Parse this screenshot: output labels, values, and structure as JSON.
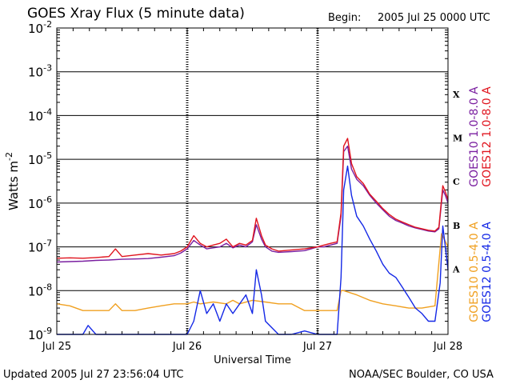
{
  "header": {
    "title": "GOES Xray Flux (5 minute data)",
    "begin_label": "Begin:",
    "begin_value": "2005 Jul 25 0000 UTC"
  },
  "footer": {
    "updated": "Updated 2005 Jul 27 23:56:04 UTC",
    "credit": "NOAA/SEC Boulder, CO USA"
  },
  "colors": {
    "goes10_long": "#7a1fa0",
    "goes12_long": "#e0141e",
    "goes10_short": "#f0a020",
    "goes12_short": "#1428e6",
    "grid": "#000000"
  },
  "chart_data": {
    "type": "line",
    "title": "GOES Xray Flux (5 minute data)",
    "xlabel": "Universal Time",
    "ylabel": "Watts m",
    "ylabel_sup": "-2",
    "y_scale": "log",
    "ylim": [
      1e-09,
      0.01
    ],
    "xlim_days": [
      0,
      3
    ],
    "grid": true,
    "x_ticks": [
      {
        "label": "Jul 25",
        "day": 0
      },
      {
        "label": "Jul 26",
        "day": 1
      },
      {
        "label": "Jul 27",
        "day": 2
      },
      {
        "label": "Jul 28",
        "day": 3
      }
    ],
    "y_ticks": [
      {
        "base": "10",
        "exp": "-9",
        "value": 1e-09
      },
      {
        "base": "10",
        "exp": "-8",
        "value": 1e-08
      },
      {
        "base": "10",
        "exp": "-7",
        "value": 1e-07
      },
      {
        "base": "10",
        "exp": "-6",
        "value": 1e-06
      },
      {
        "base": "10",
        "exp": "-5",
        "value": 1e-05
      },
      {
        "base": "10",
        "exp": "-4",
        "value": 0.0001
      },
      {
        "base": "10",
        "exp": "-3",
        "value": 0.001
      },
      {
        "base": "10",
        "exp": "-2",
        "value": 0.01
      }
    ],
    "flare_classes": [
      {
        "label": "X",
        "value": 0.0001
      },
      {
        "label": "M",
        "value": 1e-05
      },
      {
        "label": "C",
        "value": 1e-06
      },
      {
        "label": "B",
        "value": 1e-07
      },
      {
        "label": "A",
        "value": 1e-08
      }
    ],
    "legend_right": [
      {
        "text": "GOES10 1.0-8.0 A",
        "color": "#7a1fa0"
      },
      {
        "text": "GOES12 1.0-8.0 A",
        "color": "#e0141e"
      },
      {
        "text": "GOES10 0.5-4.0 A",
        "color": "#f0a020"
      },
      {
        "text": "GOES12 0.5-4.0 A",
        "color": "#1428e6"
      }
    ],
    "series": [
      {
        "name": "GOES10 1.0-8.0 A",
        "color": "#7a1fa0",
        "points": [
          [
            0.0,
            4.5e-08
          ],
          [
            0.1,
            4.6e-08
          ],
          [
            0.2,
            4.7e-08
          ],
          [
            0.3,
            4.9e-08
          ],
          [
            0.4,
            5e-08
          ],
          [
            0.5,
            5.2e-08
          ],
          [
            0.6,
            5.3e-08
          ],
          [
            0.7,
            5.4e-08
          ],
          [
            0.8,
            5.8e-08
          ],
          [
            0.9,
            6.3e-08
          ],
          [
            0.95,
            7.2e-08
          ],
          [
            1.0,
            9e-08
          ],
          [
            1.05,
            1.4e-07
          ],
          [
            1.1,
            1.1e-07
          ],
          [
            1.15,
            9e-08
          ],
          [
            1.2,
            9.5e-08
          ],
          [
            1.25,
            1e-07
          ],
          [
            1.3,
            1.2e-07
          ],
          [
            1.35,
            9.5e-08
          ],
          [
            1.4,
            1.1e-07
          ],
          [
            1.45,
            1e-07
          ],
          [
            1.5,
            1.3e-07
          ],
          [
            1.53,
            3.2e-07
          ],
          [
            1.57,
            1.5e-07
          ],
          [
            1.6,
            1e-07
          ],
          [
            1.65,
            8e-08
          ],
          [
            1.7,
            7.5e-08
          ],
          [
            1.8,
            7.8e-08
          ],
          [
            1.9,
            8.2e-08
          ],
          [
            1.95,
            9e-08
          ],
          [
            2.0,
            1e-07
          ],
          [
            2.05,
            1e-07
          ],
          [
            2.1,
            1.1e-07
          ],
          [
            2.15,
            1.2e-07
          ],
          [
            2.18,
            5e-07
          ],
          [
            2.2,
            1.5e-05
          ],
          [
            2.23,
            2e-05
          ],
          [
            2.26,
            6e-06
          ],
          [
            2.3,
            3.5e-06
          ],
          [
            2.35,
            2.5e-06
          ],
          [
            2.4,
            1.5e-06
          ],
          [
            2.45,
            1e-06
          ],
          [
            2.5,
            7e-07
          ],
          [
            2.55,
            5e-07
          ],
          [
            2.6,
            4e-07
          ],
          [
            2.65,
            3.5e-07
          ],
          [
            2.7,
            3e-07
          ],
          [
            2.75,
            2.7e-07
          ],
          [
            2.8,
            2.5e-07
          ],
          [
            2.85,
            2.3e-07
          ],
          [
            2.9,
            2.2e-07
          ],
          [
            2.93,
            2.6e-07
          ],
          [
            2.96,
            2e-06
          ],
          [
            2.98,
            1.5e-06
          ],
          [
            3.0,
            1e-06
          ]
        ]
      },
      {
        "name": "GOES12 1.0-8.0 A",
        "color": "#e0141e",
        "points": [
          [
            0.0,
            5.5e-08
          ],
          [
            0.1,
            5.6e-08
          ],
          [
            0.2,
            5.5e-08
          ],
          [
            0.3,
            5.7e-08
          ],
          [
            0.4,
            6e-08
          ],
          [
            0.45,
            9e-08
          ],
          [
            0.5,
            6e-08
          ],
          [
            0.6,
            6.5e-08
          ],
          [
            0.7,
            7e-08
          ],
          [
            0.8,
            6.5e-08
          ],
          [
            0.9,
            7e-08
          ],
          [
            0.95,
            8e-08
          ],
          [
            1.0,
            1e-07
          ],
          [
            1.05,
            1.8e-07
          ],
          [
            1.1,
            1.2e-07
          ],
          [
            1.15,
            1e-07
          ],
          [
            1.2,
            1.1e-07
          ],
          [
            1.25,
            1.2e-07
          ],
          [
            1.3,
            1.5e-07
          ],
          [
            1.35,
            1e-07
          ],
          [
            1.4,
            1.2e-07
          ],
          [
            1.45,
            1.1e-07
          ],
          [
            1.5,
            1.4e-07
          ],
          [
            1.53,
            4.5e-07
          ],
          [
            1.57,
            1.8e-07
          ],
          [
            1.6,
            1.1e-07
          ],
          [
            1.65,
            9e-08
          ],
          [
            1.7,
            8e-08
          ],
          [
            1.8,
            8.5e-08
          ],
          [
            1.9,
            9e-08
          ],
          [
            1.95,
            9.5e-08
          ],
          [
            2.0,
            1e-07
          ],
          [
            2.05,
            1.1e-07
          ],
          [
            2.1,
            1.2e-07
          ],
          [
            2.15,
            1.3e-07
          ],
          [
            2.18,
            6e-07
          ],
          [
            2.2,
            2e-05
          ],
          [
            2.23,
            3e-05
          ],
          [
            2.26,
            8e-06
          ],
          [
            2.3,
            4e-06
          ],
          [
            2.35,
            2.8e-06
          ],
          [
            2.4,
            1.6e-06
          ],
          [
            2.45,
            1.1e-06
          ],
          [
            2.5,
            7.5e-07
          ],
          [
            2.55,
            5.5e-07
          ],
          [
            2.6,
            4.3e-07
          ],
          [
            2.65,
            3.7e-07
          ],
          [
            2.7,
            3.2e-07
          ],
          [
            2.75,
            2.8e-07
          ],
          [
            2.8,
            2.6e-07
          ],
          [
            2.85,
            2.4e-07
          ],
          [
            2.9,
            2.3e-07
          ],
          [
            2.93,
            2.8e-07
          ],
          [
            2.96,
            2.5e-06
          ],
          [
            2.98,
            1.8e-06
          ],
          [
            3.0,
            1.2e-06
          ]
        ]
      },
      {
        "name": "GOES10 0.5-4.0 A",
        "color": "#f0a020",
        "points": [
          [
            0.0,
            5e-09
          ],
          [
            0.1,
            4.5e-09
          ],
          [
            0.2,
            3.5e-09
          ],
          [
            0.3,
            3.5e-09
          ],
          [
            0.4,
            3.5e-09
          ],
          [
            0.45,
            5e-09
          ],
          [
            0.5,
            3.5e-09
          ],
          [
            0.6,
            3.5e-09
          ],
          [
            0.7,
            4e-09
          ],
          [
            0.8,
            4.5e-09
          ],
          [
            0.9,
            5e-09
          ],
          [
            1.0,
            5e-09
          ],
          [
            1.05,
            5.5e-09
          ],
          [
            1.1,
            5e-09
          ],
          [
            1.2,
            5.5e-09
          ],
          [
            1.3,
            5e-09
          ],
          [
            1.35,
            6e-09
          ],
          [
            1.4,
            5e-09
          ],
          [
            1.5,
            6e-09
          ],
          [
            1.6,
            5.5e-09
          ],
          [
            1.7,
            5e-09
          ],
          [
            1.8,
            5e-09
          ],
          [
            1.9,
            3.5e-09
          ],
          [
            2.0,
            3.5e-09
          ],
          [
            2.1,
            3.5e-09
          ],
          [
            2.15,
            3.5e-09
          ],
          [
            2.18,
            1e-08
          ],
          [
            2.2,
            1e-08
          ],
          [
            2.3,
            8e-09
          ],
          [
            2.4,
            6e-09
          ],
          [
            2.5,
            5e-09
          ],
          [
            2.6,
            4.5e-09
          ],
          [
            2.7,
            4e-09
          ],
          [
            2.8,
            4e-09
          ],
          [
            2.9,
            4.5e-09
          ],
          [
            2.95,
            2e-07
          ],
          [
            3.0,
            1e-07
          ]
        ]
      },
      {
        "name": "GOES12 0.5-4.0 A",
        "color": "#1428e6",
        "points": [
          [
            0.0,
            1e-09
          ],
          [
            0.2,
            1e-09
          ],
          [
            0.24,
            1.6e-09
          ],
          [
            0.3,
            1e-09
          ],
          [
            0.5,
            1e-09
          ],
          [
            0.7,
            1e-09
          ],
          [
            1.0,
            1e-09
          ],
          [
            1.05,
            2e-09
          ],
          [
            1.1,
            1e-08
          ],
          [
            1.15,
            3e-09
          ],
          [
            1.2,
            5e-09
          ],
          [
            1.25,
            2e-09
          ],
          [
            1.3,
            5e-09
          ],
          [
            1.35,
            3e-09
          ],
          [
            1.45,
            8e-09
          ],
          [
            1.5,
            3e-09
          ],
          [
            1.53,
            3e-08
          ],
          [
            1.57,
            8e-09
          ],
          [
            1.6,
            2e-09
          ],
          [
            1.7,
            1e-09
          ],
          [
            1.8,
            1e-09
          ],
          [
            1.9,
            1.2e-09
          ],
          [
            2.0,
            1e-09
          ],
          [
            2.1,
            1e-09
          ],
          [
            2.15,
            1e-09
          ],
          [
            2.18,
            2e-08
          ],
          [
            2.2,
            2e-06
          ],
          [
            2.23,
            7e-06
          ],
          [
            2.26,
            1.5e-06
          ],
          [
            2.3,
            5e-07
          ],
          [
            2.35,
            3e-07
          ],
          [
            2.4,
            1.5e-07
          ],
          [
            2.45,
            8e-08
          ],
          [
            2.5,
            4e-08
          ],
          [
            2.55,
            2.5e-08
          ],
          [
            2.6,
            2e-08
          ],
          [
            2.65,
            1.2e-08
          ],
          [
            2.7,
            7e-09
          ],
          [
            2.75,
            4e-09
          ],
          [
            2.8,
            3e-09
          ],
          [
            2.85,
            2e-09
          ],
          [
            2.9,
            2e-09
          ],
          [
            2.94,
            1.5e-08
          ],
          [
            2.96,
            3e-07
          ],
          [
            2.98,
            1e-07
          ],
          [
            3.0,
            3e-08
          ]
        ]
      }
    ]
  }
}
